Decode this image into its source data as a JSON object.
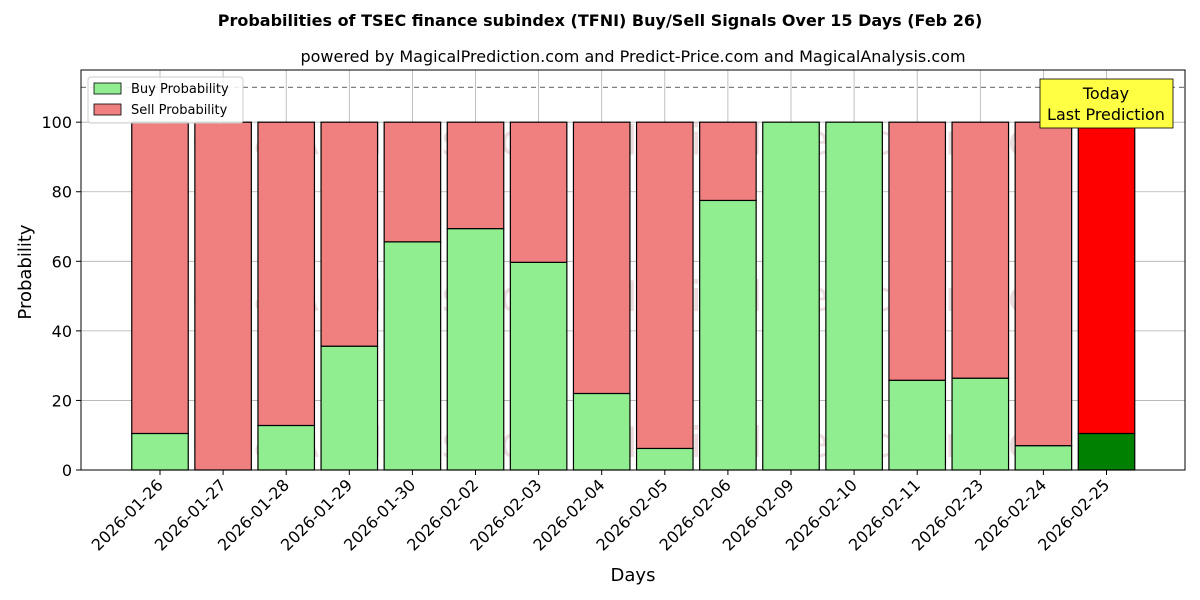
{
  "chart_data": {
    "type": "bar",
    "stacked": true,
    "title": "Probabilities of TSEC finance subindex (TFNI) Buy/Sell Signals Over 15 Days (Feb 26)",
    "subtitle": "powered by MagicalPrediction.com and Predict-Price.com and MagicalAnalysis.com",
    "xlabel": "Days",
    "ylabel": "Probability",
    "ylim": [
      0,
      115
    ],
    "yticks": [
      0,
      20,
      40,
      60,
      80,
      100
    ],
    "grid": true,
    "legend_position": "top-left",
    "reference_line": 110,
    "categories": [
      "2026-01-26",
      "2026-01-27",
      "2026-01-28",
      "2026-01-29",
      "2026-01-30",
      "2026-02-02",
      "2026-02-03",
      "2026-02-04",
      "2026-02-05",
      "2026-02-06",
      "2026-02-09",
      "2026-02-10",
      "2026-02-11",
      "2026-02-23",
      "2026-02-24",
      "2026-02-25"
    ],
    "series": [
      {
        "name": "Buy Probability",
        "color": "#90ee90",
        "values": [
          10.5,
          0,
          12.8,
          35.6,
          65.6,
          69.4,
          59.7,
          22.0,
          6.2,
          77.5,
          100,
          100,
          25.8,
          26.4,
          7.0,
          10.5
        ]
      },
      {
        "name": "Sell Probability",
        "color": "#f08080",
        "values": [
          89.5,
          100,
          87.2,
          64.4,
          34.4,
          30.6,
          40.3,
          78.0,
          93.8,
          22.5,
          0,
          0,
          74.2,
          73.6,
          93.0,
          89.5
        ]
      }
    ],
    "highlight": {
      "index": 15,
      "buy_color": "#008000",
      "sell_color": "#ff0000"
    },
    "annotation": {
      "lines": [
        "Today",
        "Last Prediction"
      ],
      "bg_color": "#ffff44"
    },
    "watermarks": [
      "MagicalAnalysis.com",
      "MagicalPrediction.com"
    ]
  }
}
